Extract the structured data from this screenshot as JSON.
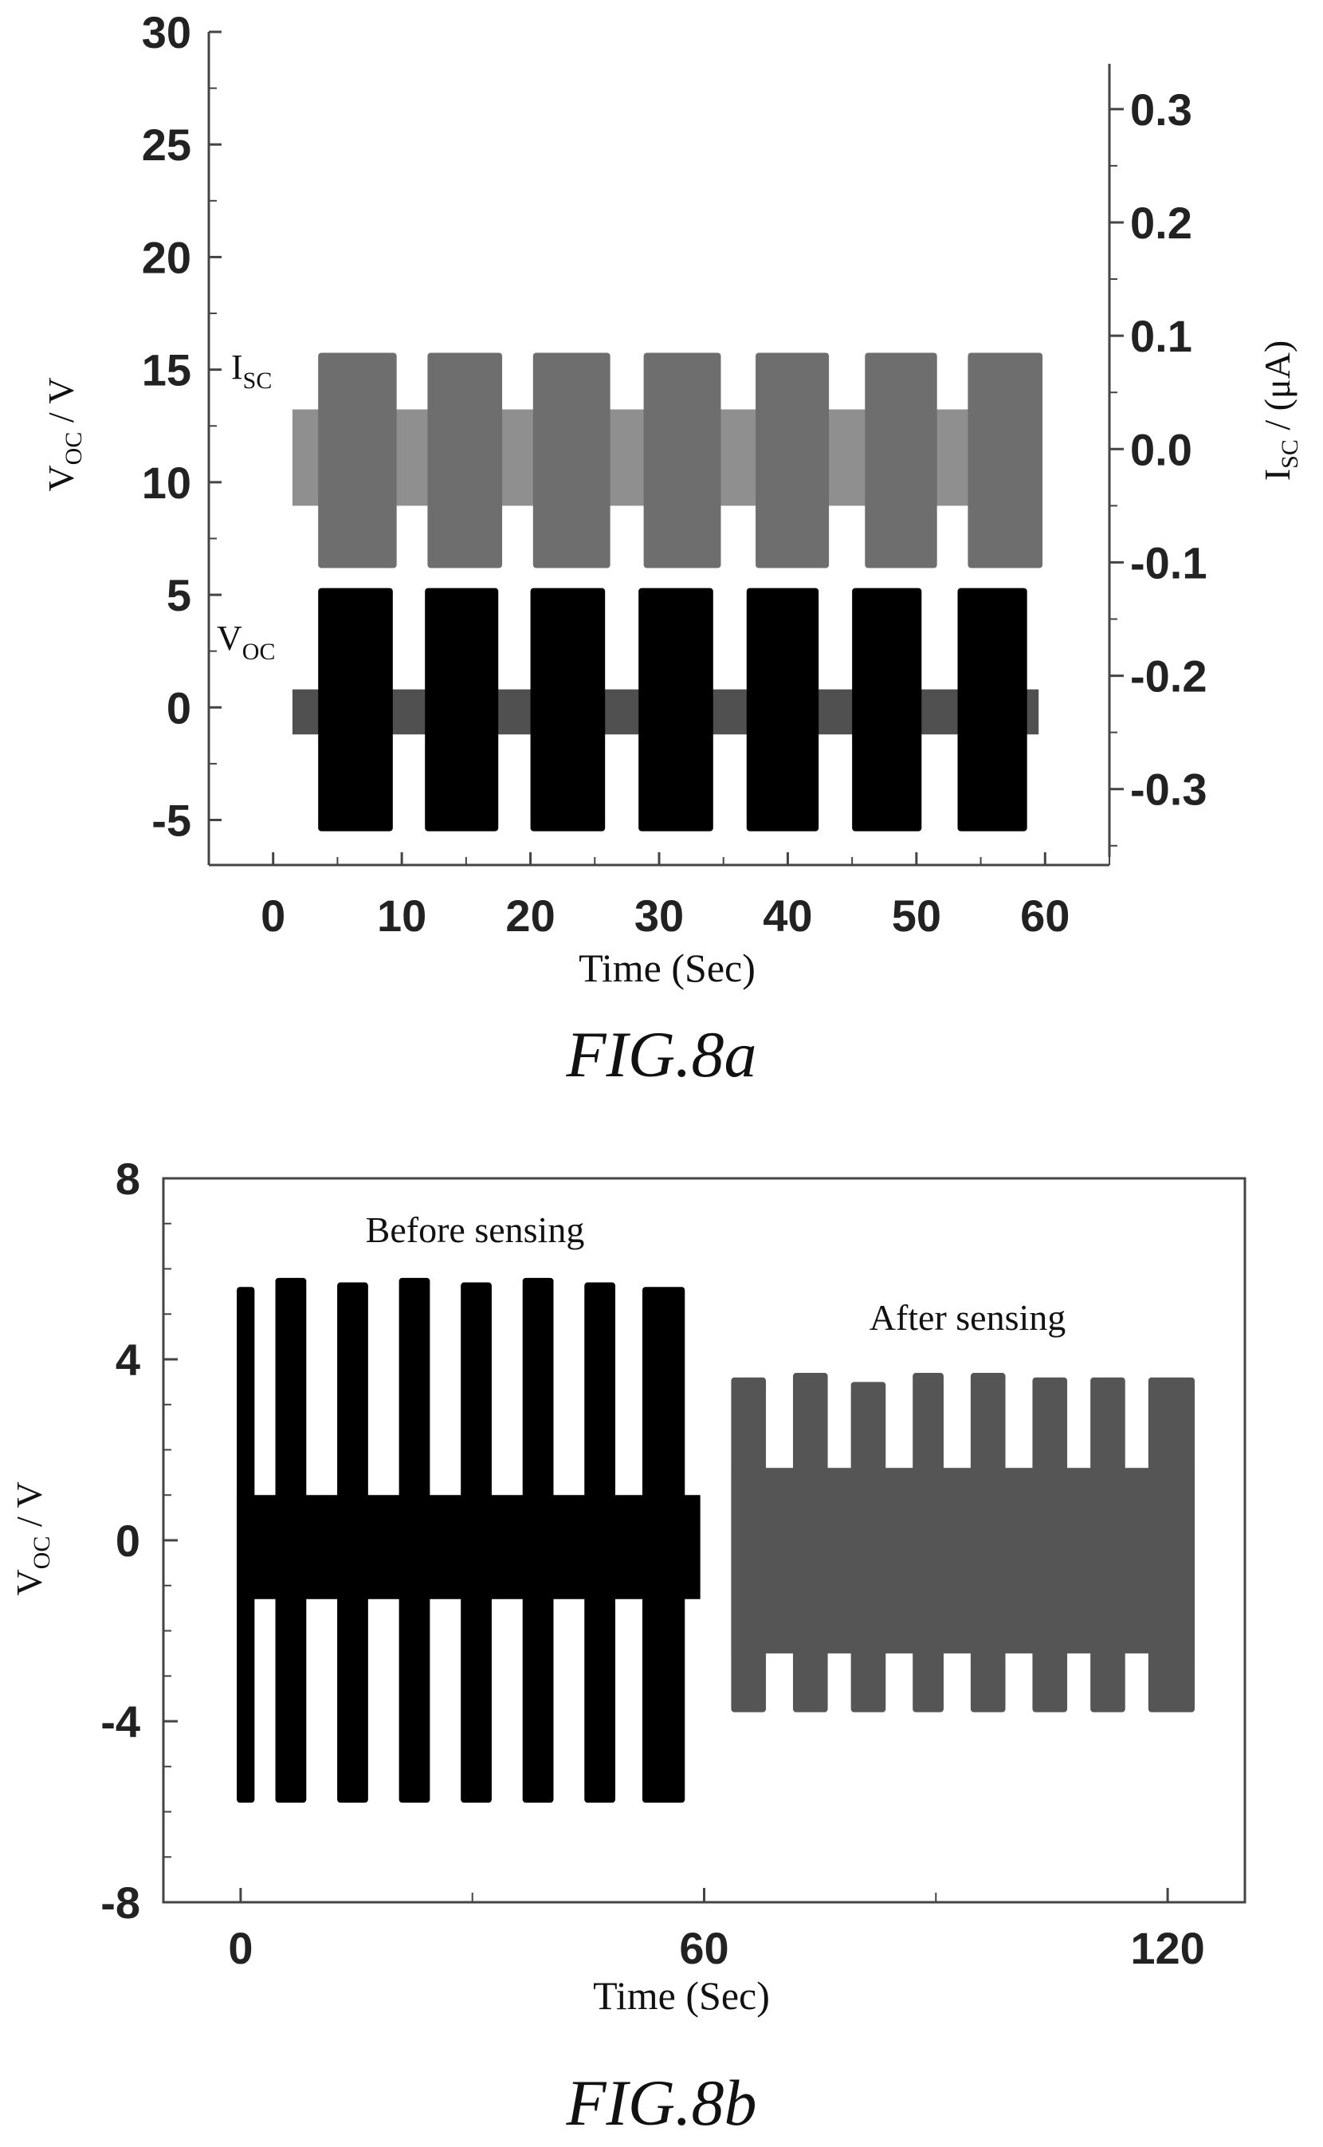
{
  "chart_data": [
    {
      "type": "line",
      "caption": "FIG.8a",
      "xlabel": "Time (Sec)",
      "ylabel_left": {
        "main": "V",
        "sub": "OC",
        "unit": " / V"
      },
      "ylabel_right": {
        "main": "I",
        "sub": "SC",
        "unit": " / (μA)"
      },
      "x_ticks": [
        "0",
        "10",
        "20",
        "30",
        "40",
        "50",
        "60"
      ],
      "y_left_ticks": [
        "-5",
        "0",
        "5",
        "10",
        "15",
        "20",
        "25",
        "30"
      ],
      "y_right_ticks": [
        "-0.3",
        "-0.2",
        "-0.1",
        "0.0",
        "0.1",
        "0.2",
        "0.3"
      ],
      "xlim": [
        -5,
        65
      ],
      "ylim_left": [
        -7,
        30
      ],
      "ylim_right": [
        -0.36,
        0.34
      ],
      "grid": false,
      "series": [
        {
          "name": "I_SC",
          "label_main": "I",
          "label_sub": "SC",
          "axis": "right",
          "color": "#6e6e6e",
          "baseline_band": [
            -0.05,
            0.035
          ],
          "trace_span": [
            1.5,
            59.5
          ],
          "bursts": [
            {
              "start": 3.5,
              "end": 9.6,
              "min": -0.105,
              "max": 0.085
            },
            {
              "start": 12.0,
              "end": 17.8,
              "min": -0.105,
              "max": 0.085
            },
            {
              "start": 20.2,
              "end": 26.2,
              "min": -0.105,
              "max": 0.085
            },
            {
              "start": 28.8,
              "end": 34.8,
              "min": -0.105,
              "max": 0.085
            },
            {
              "start": 37.5,
              "end": 43.2,
              "min": -0.105,
              "max": 0.085
            },
            {
              "start": 46.0,
              "end": 51.6,
              "min": -0.105,
              "max": 0.085
            },
            {
              "start": 54.0,
              "end": 59.8,
              "min": -0.105,
              "max": 0.085
            }
          ]
        },
        {
          "name": "V_OC",
          "label_main": "V",
          "label_sub": "OC",
          "axis": "left",
          "color": "#000000",
          "baseline_band": [
            -1.2,
            0.8
          ],
          "baseline_color": "#505050",
          "trace_span": [
            1.5,
            59.5
          ],
          "bursts": [
            {
              "start": 3.5,
              "end": 9.3,
              "min": -5.5,
              "max": 5.3
            },
            {
              "start": 11.8,
              "end": 17.5,
              "min": -5.5,
              "max": 5.3
            },
            {
              "start": 20.0,
              "end": 25.8,
              "min": -5.5,
              "max": 5.3
            },
            {
              "start": 28.4,
              "end": 34.2,
              "min": -5.5,
              "max": 5.3
            },
            {
              "start": 36.8,
              "end": 42.4,
              "min": -5.5,
              "max": 5.3
            },
            {
              "start": 45.0,
              "end": 50.4,
              "min": -5.5,
              "max": 5.3
            },
            {
              "start": 53.2,
              "end": 58.6,
              "min": -5.5,
              "max": 5.3
            }
          ]
        }
      ]
    },
    {
      "type": "line",
      "caption": "FIG.8b",
      "xlabel": "Time (Sec)",
      "ylabel": {
        "main": "V",
        "sub": "OC",
        "unit": " / V"
      },
      "x_ticks": [
        "0",
        "60",
        "120"
      ],
      "y_ticks": [
        "-8",
        "-4",
        "0",
        "4",
        "8"
      ],
      "xlim": [
        -10,
        130
      ],
      "ylim": [
        -8,
        8
      ],
      "grid": false,
      "annotations": [
        "Before sensing",
        "After sensing"
      ],
      "series": [
        {
          "name": "Before sensing",
          "color": "#000000",
          "baseline_band": [
            -1.3,
            1.0
          ],
          "trace_span": [
            -0.5,
            59.5
          ],
          "bursts": [
            {
              "start": -0.5,
              "end": 1.8,
              "min": -5.8,
              "max": 5.6
            },
            {
              "start": 4.5,
              "end": 8.5,
              "min": -5.8,
              "max": 5.8
            },
            {
              "start": 12.5,
              "end": 16.5,
              "min": -5.8,
              "max": 5.7
            },
            {
              "start": 20.5,
              "end": 24.5,
              "min": -5.8,
              "max": 5.8
            },
            {
              "start": 28.5,
              "end": 32.5,
              "min": -5.8,
              "max": 5.7
            },
            {
              "start": 36.5,
              "end": 40.5,
              "min": -5.8,
              "max": 5.8
            },
            {
              "start": 44.5,
              "end": 48.5,
              "min": -5.8,
              "max": 5.7
            },
            {
              "start": 52.0,
              "end": 57.5,
              "min": -5.8,
              "max": 5.6
            }
          ]
        },
        {
          "name": "After sensing",
          "color": "#555555",
          "baseline_band": [
            -2.5,
            1.6
          ],
          "trace_span": [
            63.5,
            123.5
          ],
          "bursts": [
            {
              "start": 63.5,
              "end": 68.0,
              "min": -3.8,
              "max": 3.6
            },
            {
              "start": 71.5,
              "end": 76.0,
              "min": -3.8,
              "max": 3.7
            },
            {
              "start": 79.0,
              "end": 83.5,
              "min": -3.8,
              "max": 3.5
            },
            {
              "start": 87.0,
              "end": 91.0,
              "min": -3.8,
              "max": 3.7
            },
            {
              "start": 94.5,
              "end": 99.0,
              "min": -3.8,
              "max": 3.7
            },
            {
              "start": 102.5,
              "end": 107.0,
              "min": -3.8,
              "max": 3.6
            },
            {
              "start": 110.0,
              "end": 114.5,
              "min": -3.8,
              "max": 3.6
            },
            {
              "start": 117.5,
              "end": 123.5,
              "min": -3.8,
              "max": 3.6
            }
          ]
        }
      ]
    }
  ]
}
